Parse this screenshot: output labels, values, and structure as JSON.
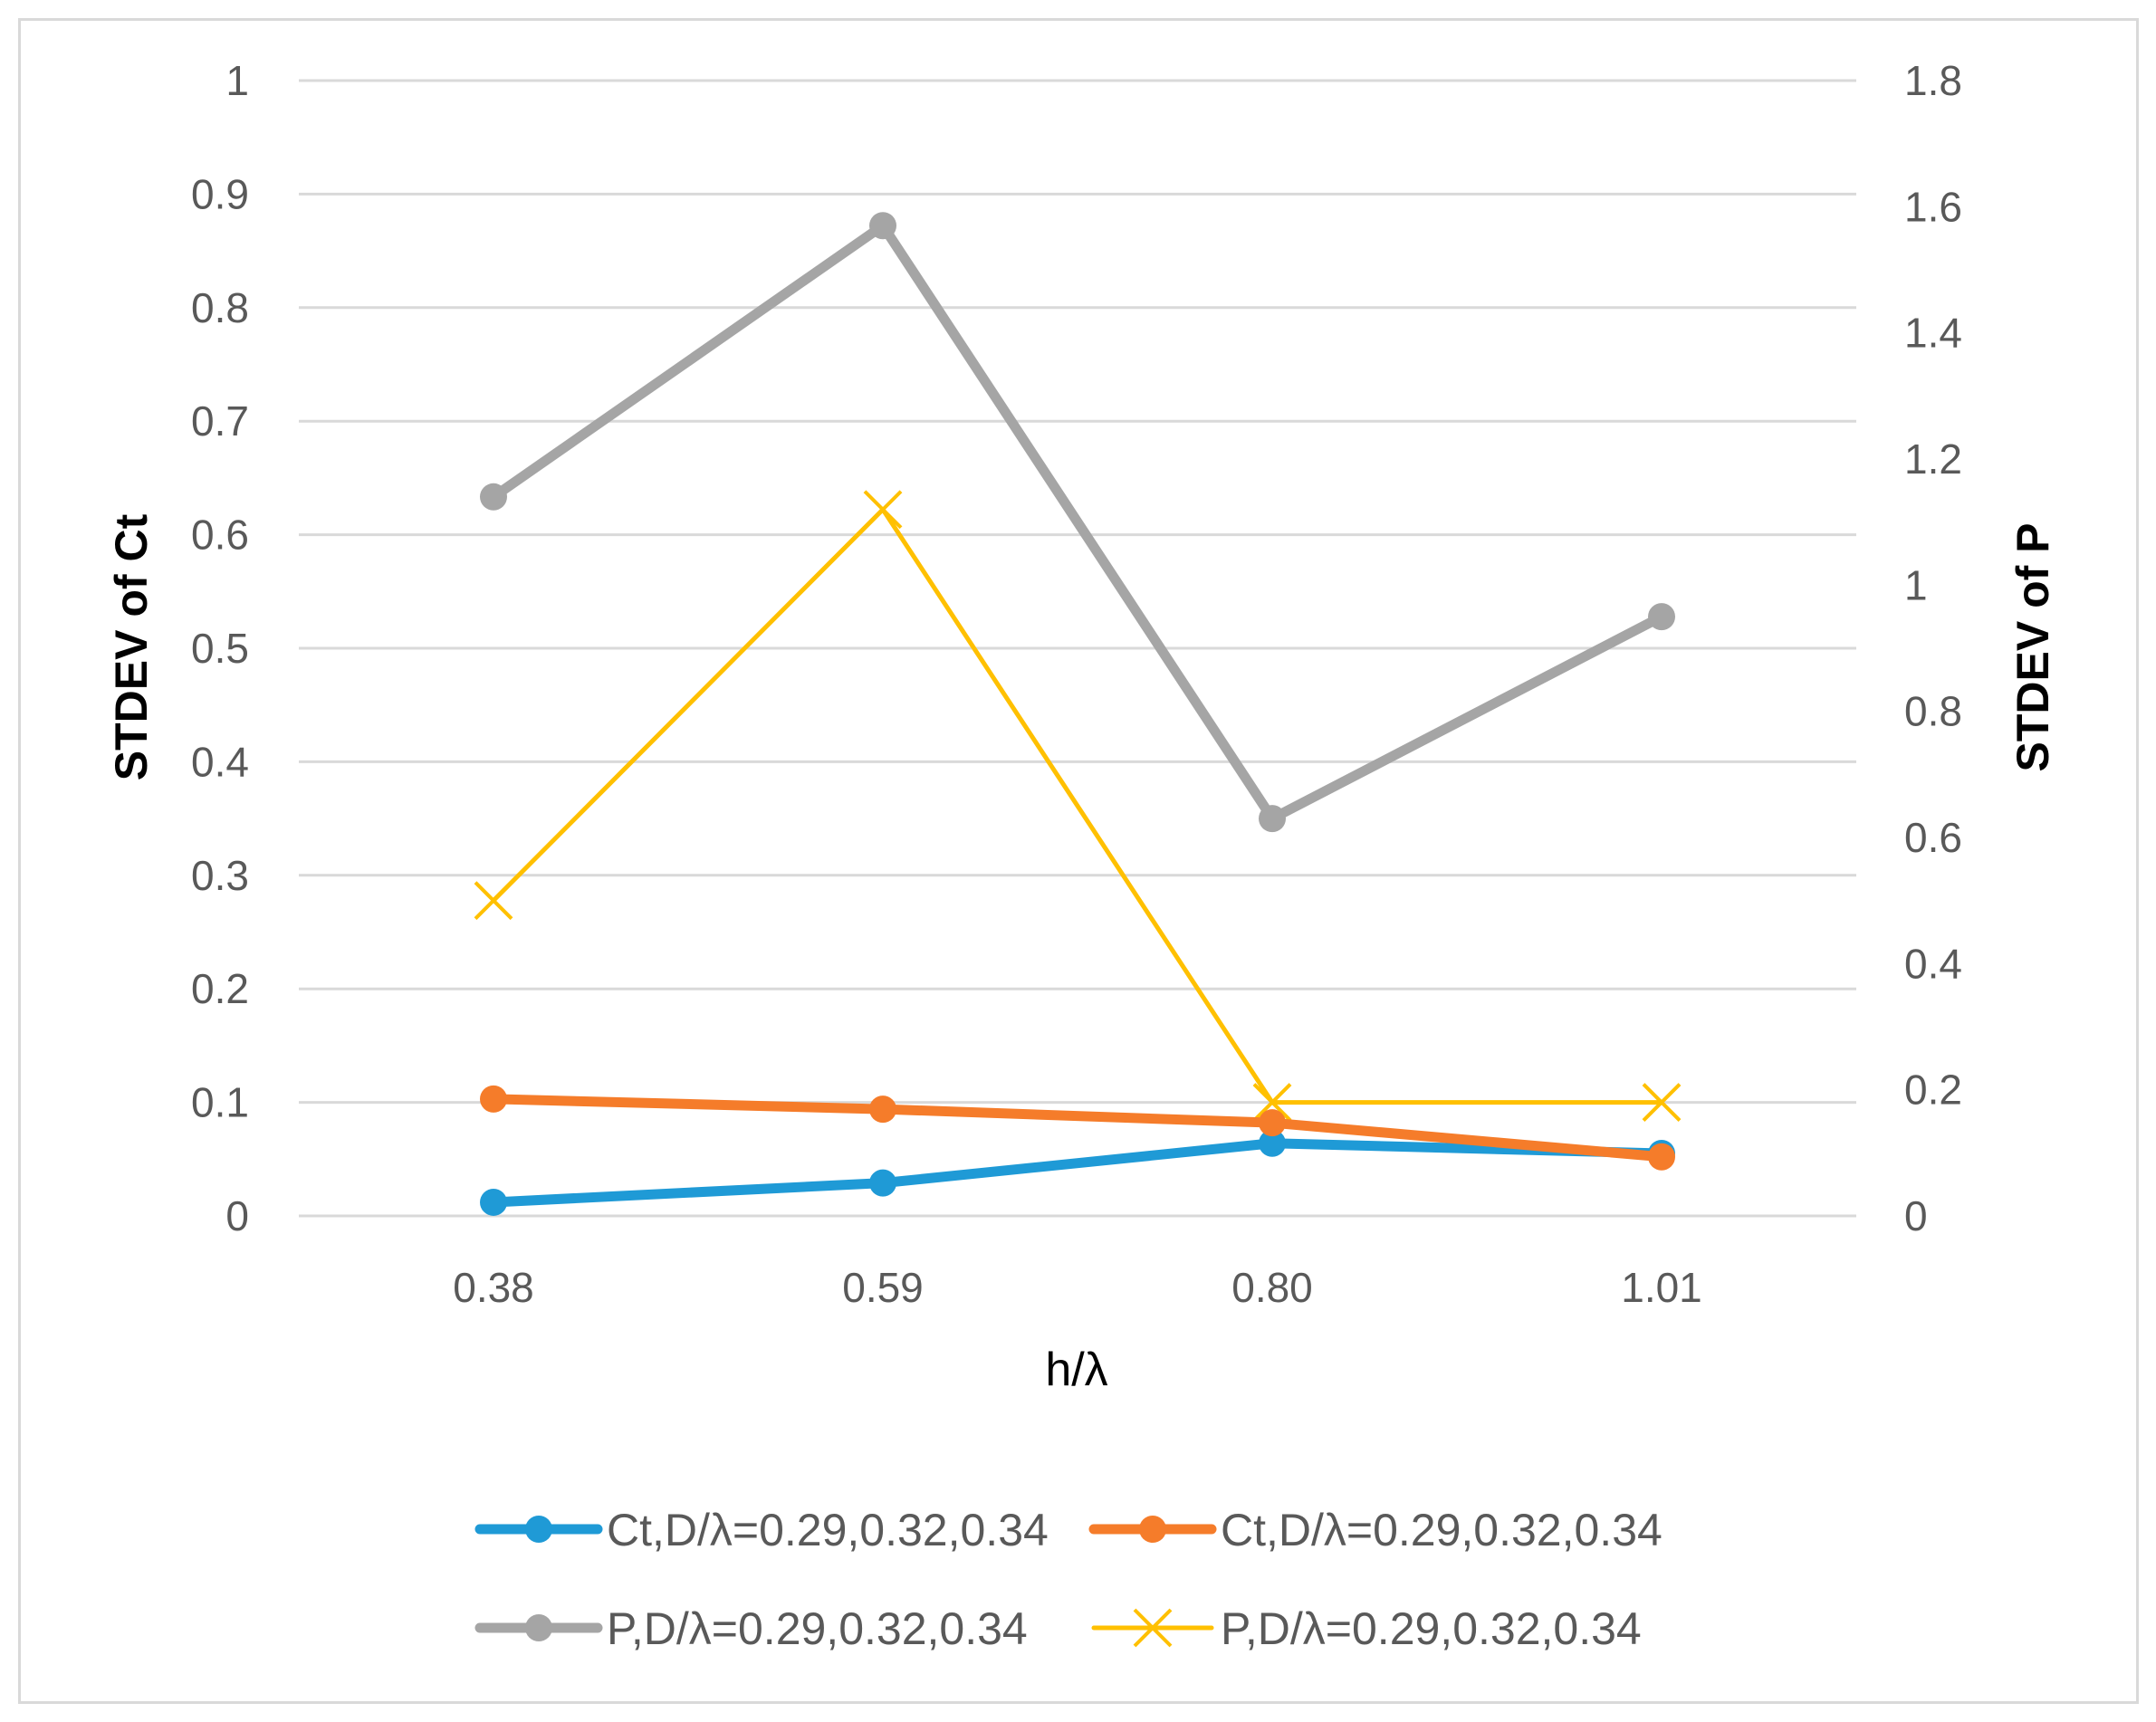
{
  "chart_data": {
    "type": "line",
    "title": "",
    "xlabel": "h/λ",
    "ylabel": "STDEV of Ct",
    "y2label": "STDEV of P",
    "categories": [
      "0.38",
      "0.59",
      "0.80",
      "1.01"
    ],
    "ylim": [
      0,
      1
    ],
    "y_ticks": [
      "0",
      "0.1",
      "0.2",
      "0.3",
      "0.4",
      "0.5",
      "0.6",
      "0.7",
      "0.8",
      "0.9",
      "1"
    ],
    "y2lim": [
      0,
      1.8
    ],
    "y2_ticks": [
      "0",
      "0.2",
      "0.4",
      "0.6",
      "0.8",
      "1",
      "1.2",
      "1.4",
      "1.6",
      "1.8"
    ],
    "grid": true,
    "legend_position": "bottom",
    "series": [
      {
        "name": "Ct,D/λ=0.29,0.32,0.34",
        "axis": "left",
        "color": "#1f9ad6",
        "marker": "circle",
        "values": [
          0.012,
          0.029,
          0.064,
          0.055
        ]
      },
      {
        "name": "Ct,D/λ=0.29,0.32,0.34",
        "axis": "left",
        "color": "#f57c2a",
        "marker": "circle",
        "values": [
          0.103,
          0.094,
          0.082,
          0.052
        ]
      },
      {
        "name": "P,D/λ=0.29,0.32,0.34",
        "axis": "right",
        "color": "#a5a5a5",
        "marker": "circle",
        "values": [
          1.14,
          1.57,
          0.63,
          0.95
        ]
      },
      {
        "name": "P,D/λ=0.29,0.32,0.34",
        "axis": "right",
        "color": "#ffc000",
        "marker": "x",
        "values": [
          0.5,
          1.12,
          0.18,
          0.18
        ]
      }
    ]
  }
}
